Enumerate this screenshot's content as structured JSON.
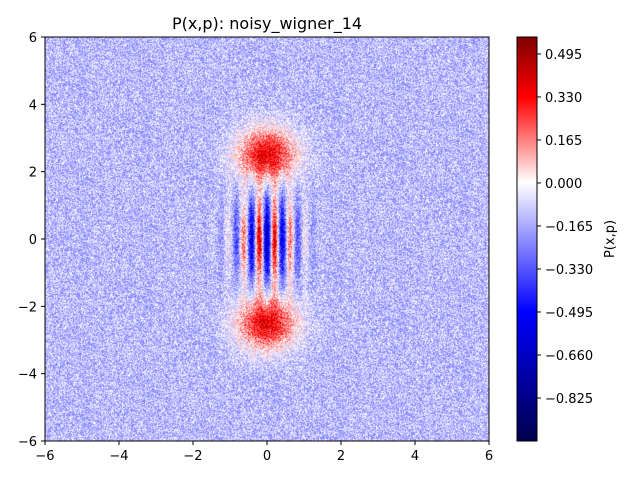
{
  "chart_data": {
    "type": "heatmap",
    "title": "P(x,p): noisy_wigner_14",
    "xlabel": "",
    "ylabel": "",
    "xlim": [
      -6,
      6
    ],
    "ylim": [
      -6,
      6
    ],
    "xticks": [
      -6,
      -4,
      -2,
      0,
      2,
      4,
      6
    ],
    "yticks": [
      -6,
      -4,
      -2,
      0,
      2,
      4,
      6
    ],
    "xtick_labels": [
      "−6",
      "−4",
      "−2",
      "0",
      "2",
      "4",
      "6"
    ],
    "ytick_labels": [
      "−6",
      "−4",
      "−2",
      "0",
      "2",
      "4",
      "6"
    ],
    "grid": false,
    "colormap": "seismic",
    "colormap_stops": [
      "#00004d",
      "#0000ff",
      "#ffffff",
      "#ff0000",
      "#800000"
    ],
    "colorbar": {
      "label": "P(x,p)",
      "vmin": -0.99,
      "vmax": 0.56,
      "ticks": [
        0.495,
        0.33,
        0.165,
        0.0,
        -0.165,
        -0.33,
        -0.495,
        -0.66,
        -0.825
      ],
      "tick_labels": [
        "0.495",
        "0.330",
        "0.165",
        "0.000",
        "−0.165",
        "−0.330",
        "−0.495",
        "−0.660",
        "−0.825"
      ]
    },
    "background_level": -0.12,
    "features": [
      {
        "name": "upper-lobe",
        "x": 0,
        "p": 2.5,
        "sigma": 0.55,
        "peak": 0.5
      },
      {
        "name": "lower-lobe",
        "x": 0,
        "p": -2.5,
        "sigma": 0.55,
        "peak": 0.5
      },
      {
        "name": "interference-fringes",
        "x": 0,
        "p": 0,
        "sigma_x": 0.6,
        "sigma_p": 0.9,
        "amplitude": 0.55,
        "fringe_period": 0.42
      }
    ]
  }
}
